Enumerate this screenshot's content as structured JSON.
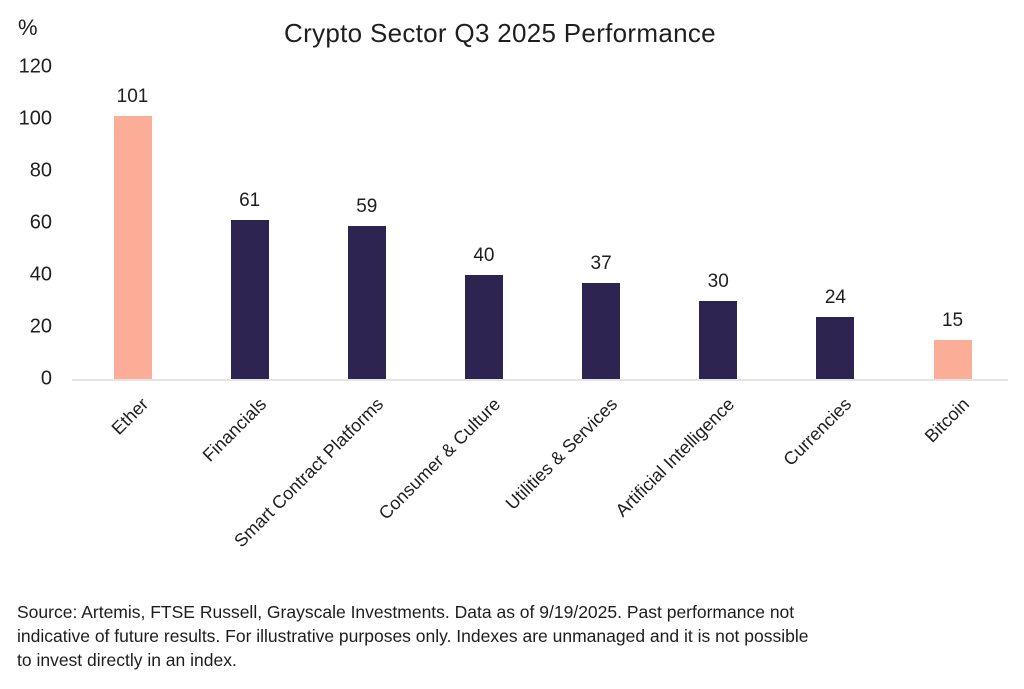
{
  "chart_data": {
    "type": "bar",
    "title": "Crypto Sector Q3 2025 Performance",
    "ylabel": "%",
    "xlabel": "",
    "categories": [
      "Ether",
      "Financials",
      "Smart Contract Platforms",
      "Consumer & Culture",
      "Utilities & Services",
      "Artificial Intelligence",
      "Currencies",
      "Bitcoin"
    ],
    "values": [
      101,
      61,
      59,
      40,
      37,
      30,
      24,
      15
    ],
    "bar_colors": [
      "#FCAD97",
      "#2E2451",
      "#2E2451",
      "#2E2451",
      "#2E2451",
      "#2E2451",
      "#2E2451",
      "#FCAD97"
    ],
    "highlight_color": "#FCAD97",
    "base_color": "#2E2451",
    "axis_line_color": "#E4E4E4",
    "y_ticks": [
      0,
      20,
      40,
      60,
      80,
      100,
      120
    ],
    "ylim": [
      0,
      120
    ],
    "grid": false,
    "legend_position": "none",
    "value_labels_shown": true,
    "category_label_rotation_deg": 45
  },
  "footer": {
    "lines": [
      "Source: Artemis, FTSE Russell, Grayscale Investments. Data as of 9/19/2025. Past performance not",
      "indicative of future results. For illustrative purposes only. Indexes are unmanaged and it is not possible",
      "to invest directly in an index."
    ]
  }
}
